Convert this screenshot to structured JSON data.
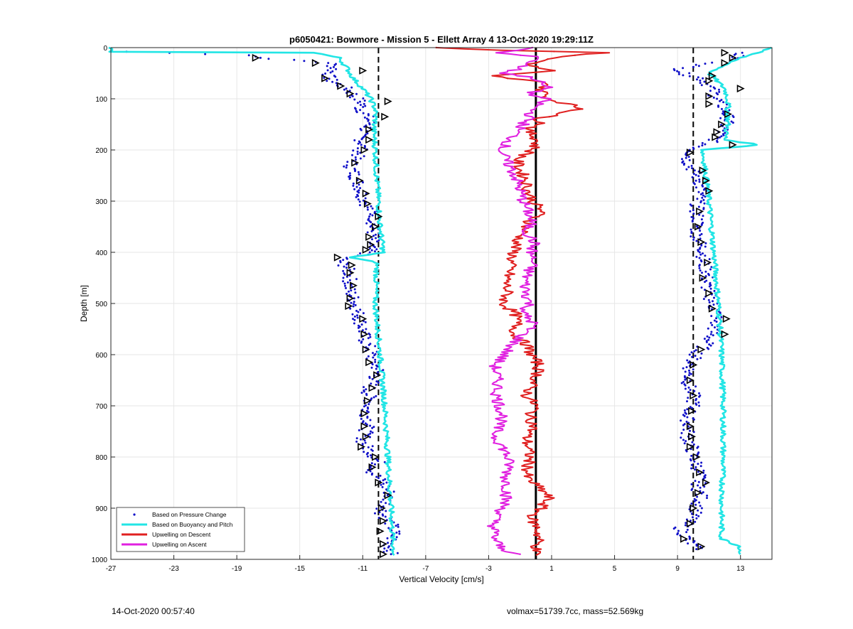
{
  "chart_data": {
    "type": "line",
    "title": "p6050421: Bowmore - Mission 5 - Ellett Array 4 13-Oct-2020 19:29:11Z",
    "xlabel": "Vertical Velocity [cm/s]",
    "ylabel": "Depth [m]",
    "xlim": [
      -27,
      15
    ],
    "ylim": [
      1000,
      0
    ],
    "y_reversed": true,
    "x_ticks": [
      -27,
      -23,
      -19,
      -15,
      -11,
      -7,
      -3,
      1,
      5,
      9,
      13
    ],
    "y_ticks": [
      0,
      100,
      200,
      300,
      400,
      500,
      600,
      700,
      800,
      900,
      1000
    ],
    "grid": true,
    "legend_position": "bottom-left",
    "reference_lines": [
      {
        "style": "dashed",
        "x": -10.0
      },
      {
        "style": "solid",
        "x": 0.0
      },
      {
        "style": "dashed",
        "x": 10.0
      }
    ],
    "series": [
      {
        "name": "Based on Pressure Change",
        "style": "dots",
        "color": "#1010c8",
        "branches": [
          {
            "depth": [
              8,
              15,
              20,
              30,
              40,
              55,
              65,
              80,
              95,
              110,
              120,
              130,
              150,
              170,
              190,
              210,
              230,
              250,
              270,
              290,
              310,
              330,
              350,
              370,
              390,
              400,
              415,
              430,
              450,
              470,
              490,
              510,
              530,
              550,
              570,
              590,
              610,
              630,
              650,
              670,
              690,
              710,
              730,
              750,
              770,
              790,
              810,
              830,
              850,
              870,
              890,
              910,
              930,
              950,
              970,
              990
            ],
            "vel": [
              -26,
              -18,
              -17.5,
              -13,
              -12.8,
              -13.2,
              -13,
              -12,
              -11.5,
              -11,
              -11.2,
              -10.8,
              -10.5,
              -11.2,
              -11,
              -11.3,
              -11.8,
              -11.5,
              -11.2,
              -11,
              -10.7,
              -10.2,
              -10.4,
              -10.3,
              -10.6,
              -10.5,
              -12.5,
              -12,
              -11.8,
              -11.9,
              -11.6,
              -11.4,
              -11.2,
              -11,
              -10.9,
              -10.5,
              -10.4,
              -10,
              -10.3,
              -10.7,
              -10.5,
              -10.8,
              -10.6,
              -10.8,
              -11,
              -10.5,
              -10,
              -10.4,
              -9.7,
              -9.3,
              -9.5,
              -9.8,
              -9.2,
              -9,
              -9.3,
              -9.2
            ]
          },
          {
            "depth": [
              10,
              25,
              40,
              50,
              60,
              80,
              100,
              120,
              140,
              160,
              180,
              200,
              220,
              240,
              260,
              280,
              300,
              320,
              340,
              360,
              380,
              400,
              420,
              440,
              460,
              480,
              500,
              520,
              540,
              560,
              580,
              600,
              620,
              640,
              660,
              680,
              700,
              720,
              740,
              760,
              780,
              800,
              820,
              840,
              860,
              880,
              900,
              920,
              940,
              960,
              980
            ],
            "vel": [
              13,
              12.5,
              9.2,
              9.3,
              10.5,
              11.2,
              11.5,
              12,
              12.2,
              11.9,
              11.4,
              10,
              9.6,
              10,
              10.4,
              10.5,
              10.3,
              10.2,
              10.3,
              10.2,
              10.4,
              10.7,
              10.6,
              10.9,
              10.8,
              11,
              11.2,
              11.5,
              11.4,
              11.2,
              10.8,
              10.2,
              9.8,
              9.7,
              9.7,
              10,
              10,
              9.6,
              9.7,
              9.6,
              9.9,
              10,
              10.3,
              10.4,
              10.3,
              10.5,
              10.2,
              9.9,
              9.2,
              9.6,
              10.2
            ]
          }
        ]
      },
      {
        "name": "Based on Buoyancy and Pitch",
        "style": "line",
        "color": "#22e5e5",
        "branches": [
          {
            "depth": [
              0,
              8,
              10,
              20,
              40,
              60,
              80,
              100,
              120,
              140,
              160,
              200,
              260,
              300,
              350,
              400,
              410,
              420,
              500,
              600,
              700,
              800,
              900,
              960,
              992
            ],
            "vel": [
              -27,
              -27,
              -14,
              -12.5,
              -12,
              -11.6,
              -11,
              -10.5,
              -10.2,
              -10.2,
              -10.3,
              -10.2,
              -10.1,
              -10,
              -9.9,
              -9.7,
              -11.8,
              -10.1,
              -10.2,
              -9.9,
              -9.6,
              -9.4,
              -9.2,
              -9.1,
              -9
            ]
          },
          {
            "depth": [
              0,
              20,
              50,
              80,
              100,
              150,
              180,
              190,
              200,
              250,
              300,
              400,
              500,
              600,
              700,
              800,
              900,
              960,
              975,
              990
            ],
            "vel": [
              15,
              13,
              11,
              12,
              12.2,
              12.2,
              12,
              14.2,
              10.6,
              10.8,
              11,
              11.3,
              11.6,
              11.8,
              11.9,
              11.9,
              11.8,
              11.8,
              13,
              13
            ]
          }
        ]
      },
      {
        "name": "Upwelling on Descent",
        "style": "line",
        "color": "#e02020",
        "depth": [
          0,
          5,
          10,
          20,
          35,
          45,
          55,
          70,
          80,
          100,
          110,
          120,
          130,
          140,
          150,
          160,
          180,
          200,
          220,
          240,
          260,
          280,
          300,
          320,
          340,
          360,
          380,
          400,
          420,
          440,
          460,
          480,
          500,
          520,
          540,
          560,
          580,
          600,
          620,
          640,
          660,
          680,
          700,
          720,
          740,
          760,
          780,
          800,
          820,
          840,
          860,
          870,
          880,
          900,
          920,
          940,
          960,
          980,
          992
        ],
        "vel": [
          -6.5,
          -2,
          4.3,
          1,
          -0.5,
          1,
          -3,
          1,
          0.3,
          0.8,
          2,
          3,
          1.3,
          0.2,
          0.4,
          -0.6,
          0.1,
          -0.2,
          -1.2,
          -1,
          -0.6,
          -0.5,
          -0.2,
          0.4,
          -0.4,
          -0.8,
          -1.2,
          -1.4,
          -1.6,
          -1.7,
          -1.9,
          -1.8,
          -2.1,
          -1.3,
          -1.2,
          -1.4,
          -0.6,
          -0.3,
          0.2,
          0.1,
          -0.3,
          -0.6,
          0,
          -0.4,
          -0.1,
          -0.6,
          -0.5,
          -0.4,
          -0.5,
          -0.6,
          0.2,
          0.6,
          0.8,
          0.3,
          -0.3,
          0.1,
          0.2,
          0,
          0
        ]
      },
      {
        "name": "Upwelling on Ascent",
        "style": "line",
        "color": "#e020e0",
        "depth": [
          0,
          10,
          20,
          30,
          40,
          50,
          60,
          70,
          80,
          90,
          100,
          120,
          140,
          160,
          180,
          200,
          220,
          240,
          260,
          280,
          300,
          320,
          340,
          360,
          380,
          400,
          420,
          440,
          460,
          480,
          500,
          520,
          540,
          560,
          580,
          600,
          620,
          640,
          660,
          680,
          700,
          720,
          740,
          760,
          780,
          800,
          820,
          840,
          860,
          880,
          900,
          920,
          940,
          960,
          980,
          990
        ],
        "vel": [
          0,
          -2.5,
          0.5,
          -0.5,
          -1,
          -2,
          0,
          0.3,
          0.8,
          -0.5,
          0.6,
          -0.2,
          -0.5,
          -1.1,
          -1.6,
          -2.2,
          -1.9,
          -1.5,
          -1.2,
          -1,
          -0.8,
          -0.5,
          -0.3,
          -0.6,
          -0.1,
          -0.3,
          -0.2,
          -0.5,
          -0.7,
          -0.6,
          -0.4,
          -0.8,
          -0.1,
          -0.8,
          -1.5,
          -2,
          -2.6,
          -2.5,
          -2.4,
          -2.5,
          -2.3,
          -2.1,
          -2.4,
          -2.6,
          -2.1,
          -1.8,
          -1.7,
          -1.9,
          -1.8,
          -1.9,
          -2.1,
          -2.6,
          -2.7,
          -2.6,
          -2.2,
          -1
        ]
      },
      {
        "name": "",
        "style": "triangles",
        "color": "#000000",
        "branches": [
          {
            "depth": [
              20,
              30,
              45,
              60,
              75,
              90,
              105,
              135,
              160,
              180,
              200,
              225,
              260,
              285,
              305,
              330,
              350,
              370,
              385,
              395,
              410,
              425,
              440,
              465,
              490,
              505,
              530,
              560,
              590,
              615,
              640,
              665,
              690,
              715,
              740,
              760,
              780,
              800,
              820,
              850,
              875,
              900,
              925,
              945,
              970,
              990
            ],
            "vel": [
              -17.8,
              -14,
              -11,
              -13.4,
              -12.4,
              -11.8,
              -9.4,
              -9.6,
              -10.6,
              -10.6,
              -10.9,
              -11.5,
              -11.2,
              -10.8,
              -10.7,
              -10,
              -10.2,
              -10.6,
              -10.5,
              -10.8,
              -12.6,
              -11.7,
              -11.8,
              -11.6,
              -11.8,
              -11.9,
              -11,
              -10.9,
              -10.8,
              -10.6,
              -10.1,
              -10.4,
              -10.7,
              -10.9,
              -10.9,
              -10.8,
              -11.1,
              -10.2,
              -10.4,
              -10,
              -9.4,
              -9.8,
              -9.7,
              -9.9,
              -9.7,
              -9.7
            ]
          },
          {
            "depth": [
              10,
              20,
              30,
              55,
              65,
              80,
              95,
              110,
              130,
              150,
              165,
              175,
              190,
              205,
              240,
              260,
              280,
              320,
              350,
              380,
              420,
              450,
              480,
              510,
              530,
              560,
              590,
              620,
              650,
              680,
              710,
              740,
              760,
              780,
              800,
              830,
              850,
              870,
              900,
              930,
              960,
              975
            ],
            "vel": [
              12,
              12.5,
              12,
              11.2,
              11,
              13,
              11,
              11,
              12.2,
              11.8,
              11.5,
              11.4,
              12.5,
              9.8,
              10.6,
              10.8,
              11,
              10.4,
              10.3,
              10.5,
              10.9,
              10.6,
              11,
              11.2,
              12.1,
              12,
              10.5,
              10,
              9.8,
              10,
              9.9,
              9.8,
              9.9,
              9.8,
              10.2,
              10.4,
              10.8,
              10.3,
              10,
              9.8,
              9.4,
              10.5
            ]
          }
        ]
      }
    ]
  },
  "footer": {
    "left": "14-Oct-2020 00:57:40",
    "right": "volmax=51739.7cc, mass=52.569kg"
  }
}
